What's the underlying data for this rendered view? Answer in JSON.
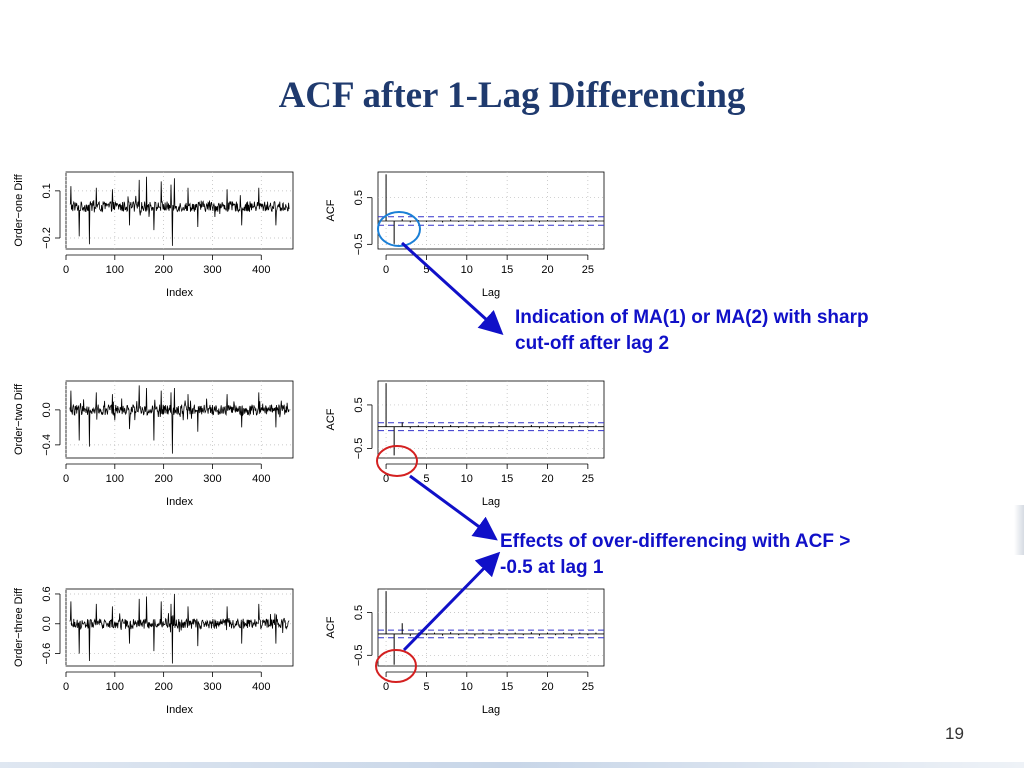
{
  "slide": {
    "title": "ACF after 1-Lag Differencing",
    "page_number": "19",
    "annotations": [
      "Indication of MA(1) or MA(2) with sharp cut-off after lag 2",
      "Effects of over-differencing with ACF > -0.5 at lag 1"
    ]
  },
  "colors": {
    "title": "#1f3a6e",
    "annotation_text": "#1010c8",
    "arrow": "#1010c8",
    "blue_circle": "#1a7fd6",
    "red_circle": "#d42020",
    "confidence_band": "#3333cc",
    "series": "#000000"
  },
  "chart_data": [
    {
      "type": "line",
      "ylabel": "Order−one Diff",
      "xlabel": "Index",
      "xlim": [
        0,
        465
      ],
      "ylim": [
        -0.27,
        0.22
      ],
      "xticks": [
        "0",
        "100",
        "200",
        "300",
        "400"
      ],
      "yticks": [
        "−0.2",
        "0.1"
      ],
      "ytick_values": [
        -0.2,
        0.1
      ],
      "n": 465,
      "amplitude": 0.033,
      "spikes": [
        [
          10,
          0.13
        ],
        [
          27,
          -0.19
        ],
        [
          48,
          -0.24
        ],
        [
          62,
          0.12
        ],
        [
          95,
          0.11
        ],
        [
          130,
          -0.12
        ],
        [
          150,
          0.17
        ],
        [
          165,
          0.19
        ],
        [
          180,
          -0.15
        ],
        [
          195,
          0.16
        ],
        [
          215,
          0.14
        ],
        [
          218,
          -0.25
        ],
        [
          222,
          0.18
        ],
        [
          250,
          0.12
        ],
        [
          270,
          -0.13
        ],
        [
          330,
          0.11
        ],
        [
          360,
          -0.12
        ],
        [
          395,
          0.12
        ],
        [
          430,
          -0.12
        ]
      ],
      "grid": true
    },
    {
      "type": "bar",
      "subtype": "acf",
      "ylabel": "ACF",
      "xlabel": "Lag",
      "xlim": [
        -1,
        27
      ],
      "ylim": [
        -0.6,
        1.05
      ],
      "xticks": [
        "0",
        "5",
        "10",
        "15",
        "20",
        "25"
      ],
      "yticks": [
        "−0.5",
        "0.5"
      ],
      "ytick_values": [
        -0.5,
        0.5
      ],
      "lags": [
        0,
        1,
        2,
        3,
        4,
        5,
        6,
        7,
        8,
        9,
        10,
        11,
        12,
        13,
        14,
        15,
        16,
        17,
        18,
        19,
        20,
        21,
        22,
        23,
        24,
        25,
        26
      ],
      "values": [
        1.0,
        -0.49,
        0.04,
        -0.03,
        0.02,
        -0.02,
        0.02,
        -0.03,
        0.03,
        -0.02,
        0.02,
        -0.03,
        0.02,
        -0.02,
        0.03,
        -0.02,
        0.02,
        -0.02,
        0.03,
        -0.03,
        0.02,
        -0.02,
        0.02,
        -0.03,
        0.02,
        -0.02,
        0.02
      ],
      "conf_limit": 0.09,
      "grid": true
    },
    {
      "type": "line",
      "ylabel": "Order−two Diff",
      "xlabel": "Index",
      "xlim": [
        0,
        465
      ],
      "ylim": [
        -0.55,
        0.33
      ],
      "xticks": [
        "0",
        "100",
        "200",
        "300",
        "400"
      ],
      "yticks": [
        "−0.4",
        "0.0"
      ],
      "ytick_values": [
        -0.4,
        0.0
      ],
      "n": 465,
      "amplitude": 0.06,
      "spikes": [
        [
          10,
          0.22
        ],
        [
          27,
          -0.35
        ],
        [
          48,
          -0.42
        ],
        [
          62,
          0.2
        ],
        [
          95,
          0.18
        ],
        [
          130,
          -0.22
        ],
        [
          150,
          0.28
        ],
        [
          165,
          0.25
        ],
        [
          180,
          -0.35
        ],
        [
          195,
          0.22
        ],
        [
          215,
          0.2
        ],
        [
          218,
          -0.5
        ],
        [
          222,
          0.25
        ],
        [
          250,
          0.18
        ],
        [
          270,
          -0.25
        ],
        [
          330,
          0.18
        ],
        [
          360,
          -0.2
        ],
        [
          395,
          0.2
        ],
        [
          430,
          -0.2
        ]
      ],
      "grid": true
    },
    {
      "type": "bar",
      "subtype": "acf",
      "ylabel": "ACF",
      "xlabel": "Lag",
      "xlim": [
        -1,
        27
      ],
      "ylim": [
        -0.72,
        1.05
      ],
      "xticks": [
        "0",
        "5",
        "10",
        "15",
        "20",
        "25"
      ],
      "yticks": [
        "−0.5",
        "0.5"
      ],
      "ytick_values": [
        -0.5,
        0.5
      ],
      "lags": [
        0,
        1,
        2,
        3,
        4,
        5,
        6,
        7,
        8,
        9,
        10,
        11,
        12,
        13,
        14,
        15,
        16,
        17,
        18,
        19,
        20,
        21,
        22,
        23,
        24,
        25,
        26
      ],
      "values": [
        1.0,
        -0.66,
        0.1,
        -0.04,
        0.03,
        -0.03,
        0.03,
        -0.04,
        0.04,
        -0.03,
        0.03,
        -0.04,
        0.03,
        -0.03,
        0.04,
        -0.03,
        0.03,
        -0.03,
        0.04,
        -0.04,
        0.03,
        -0.03,
        0.03,
        -0.04,
        0.03,
        -0.03,
        0.03
      ],
      "conf_limit": 0.09,
      "grid": true
    },
    {
      "type": "line",
      "ylabel": "Order−three Diff",
      "xlabel": "Index",
      "xlim": [
        0,
        465
      ],
      "ylim": [
        -0.85,
        0.7
      ],
      "xticks": [
        "0",
        "100",
        "200",
        "300",
        "400"
      ],
      "yticks": [
        "−0.6",
        "0.0",
        "0.6"
      ],
      "ytick_values": [
        -0.6,
        0.0,
        0.6
      ],
      "n": 465,
      "amplitude": 0.1,
      "spikes": [
        [
          10,
          0.45
        ],
        [
          27,
          -0.6
        ],
        [
          48,
          -0.75
        ],
        [
          62,
          0.4
        ],
        [
          95,
          0.35
        ],
        [
          130,
          -0.4
        ],
        [
          150,
          0.5
        ],
        [
          165,
          0.55
        ],
        [
          180,
          -0.55
        ],
        [
          195,
          0.45
        ],
        [
          215,
          0.4
        ],
        [
          218,
          -0.8
        ],
        [
          222,
          0.6
        ],
        [
          250,
          0.35
        ],
        [
          270,
          -0.45
        ],
        [
          330,
          0.35
        ],
        [
          360,
          -0.4
        ],
        [
          395,
          0.4
        ],
        [
          430,
          -0.4
        ]
      ],
      "grid": true
    },
    {
      "type": "bar",
      "subtype": "acf",
      "ylabel": "ACF",
      "xlabel": "Lag",
      "xlim": [
        -1,
        27
      ],
      "ylim": [
        -0.75,
        1.05
      ],
      "xticks": [
        "0",
        "5",
        "10",
        "15",
        "20",
        "25"
      ],
      "yticks": [
        "−0.5",
        "0.5"
      ],
      "ytick_values": [
        -0.5,
        0.5
      ],
      "lags": [
        0,
        1,
        2,
        3,
        4,
        5,
        6,
        7,
        8,
        9,
        10,
        11,
        12,
        13,
        14,
        15,
        16,
        17,
        18,
        19,
        20,
        21,
        22,
        23,
        24,
        25,
        26
      ],
      "values": [
        1.0,
        -0.72,
        0.25,
        -0.05,
        0.03,
        -0.03,
        0.03,
        -0.04,
        0.04,
        -0.03,
        0.03,
        -0.04,
        0.03,
        -0.03,
        0.04,
        -0.03,
        0.03,
        -0.03,
        0.04,
        -0.04,
        0.03,
        -0.03,
        0.03,
        -0.04,
        0.03,
        -0.03,
        0.03
      ],
      "conf_limit": 0.09,
      "grid": true
    }
  ]
}
